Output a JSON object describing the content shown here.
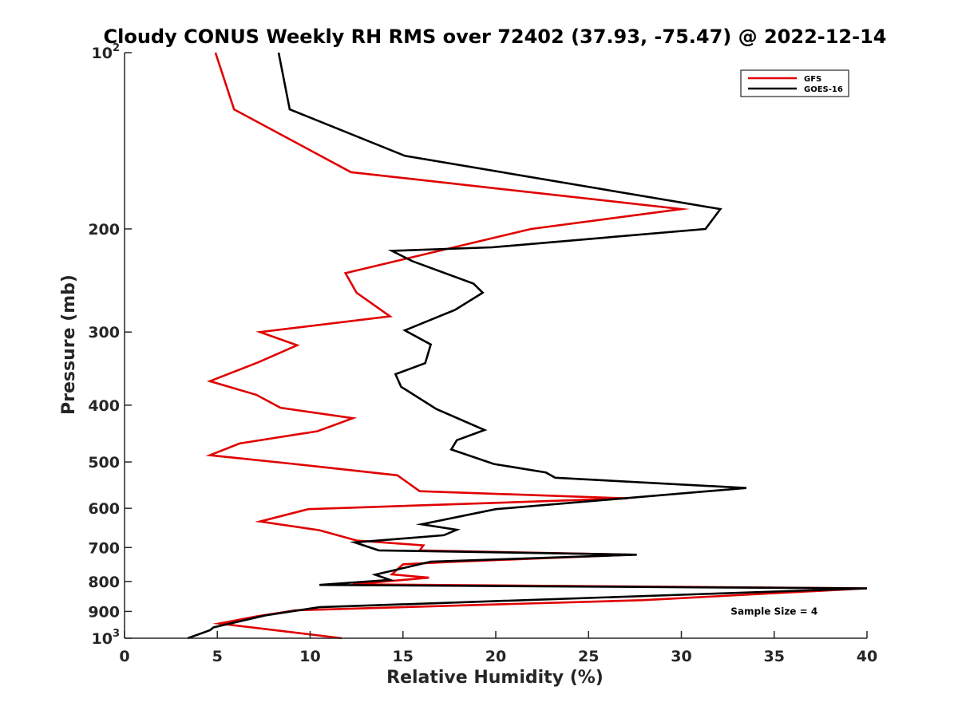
{
  "chart_data": {
    "type": "line",
    "title": "Cloudy CONUS Weekly RH RMS over 72402 (37.93, -75.47) @ 2022-12-14",
    "xlabel": "Relative Humidity (%)",
    "ylabel": "Pressure (mb)",
    "xlim": [
      0,
      40
    ],
    "ylim": [
      100,
      1000
    ],
    "y_scale": "log",
    "y_reversed": true,
    "grid": false,
    "legend_position": "top-right",
    "x_ticks": [
      0,
      5,
      10,
      15,
      20,
      25,
      30,
      35,
      40
    ],
    "x_tick_labels": [
      "0",
      "5",
      "10",
      "15",
      "20",
      "25",
      "30",
      "35",
      "40"
    ],
    "y_ticks": [
      100,
      200,
      300,
      400,
      500,
      600,
      700,
      800,
      900,
      1000
    ],
    "y_tick_labels": [
      {
        "base": "10",
        "sup": "2"
      },
      {
        "base": "200",
        "sup": ""
      },
      {
        "base": "300",
        "sup": ""
      },
      {
        "base": "400",
        "sup": ""
      },
      {
        "base": "500",
        "sup": ""
      },
      {
        "base": "600",
        "sup": ""
      },
      {
        "base": "700",
        "sup": ""
      },
      {
        "base": "800",
        "sup": ""
      },
      {
        "base": "900",
        "sup": ""
      },
      {
        "base": "10",
        "sup": "3"
      }
    ],
    "series": [
      {
        "name": "GFS",
        "color": "#e00000",
        "points": [
          [
            4.9,
            100
          ],
          [
            5.9,
            125
          ],
          [
            12.2,
            160
          ],
          [
            30.0,
            185
          ],
          [
            21.9,
            200
          ],
          [
            11.9,
            238
          ],
          [
            12.5,
            257
          ],
          [
            14.3,
            282
          ],
          [
            7.3,
            300
          ],
          [
            9.3,
            316
          ],
          [
            7.2,
            338
          ],
          [
            4.6,
            364
          ],
          [
            7.1,
            384
          ],
          [
            8.4,
            404
          ],
          [
            12.3,
            421
          ],
          [
            10.4,
            443
          ],
          [
            6.2,
            465
          ],
          [
            4.6,
            487
          ],
          [
            8.9,
            503
          ],
          [
            14.7,
            527
          ],
          [
            15.9,
            561
          ],
          [
            27.1,
            577
          ],
          [
            9.9,
            602
          ],
          [
            7.3,
            632
          ],
          [
            10.5,
            654
          ],
          [
            12.5,
            681
          ],
          [
            16.1,
            694
          ],
          [
            15.9,
            708
          ],
          [
            27.3,
            720
          ],
          [
            17.5,
            741
          ],
          [
            15.0,
            748
          ],
          [
            14.4,
            778
          ],
          [
            16.4,
            788
          ],
          [
            12.3,
            809
          ],
          [
            40.0,
            822
          ],
          [
            27.9,
            861
          ],
          [
            9.2,
            896
          ],
          [
            7.1,
            918
          ],
          [
            5.1,
            944
          ],
          [
            11.7,
            1000
          ]
        ]
      },
      {
        "name": "GOES-16",
        "color": "#000000",
        "points": [
          [
            8.3,
            100
          ],
          [
            8.9,
            125
          ],
          [
            15.1,
            150
          ],
          [
            32.1,
            185
          ],
          [
            31.3,
            200
          ],
          [
            19.8,
            215
          ],
          [
            14.4,
            218
          ],
          [
            15.5,
            227
          ],
          [
            18.8,
            248
          ],
          [
            19.3,
            257
          ],
          [
            17.8,
            275
          ],
          [
            15.1,
            298
          ],
          [
            16.5,
            315
          ],
          [
            16.2,
            339
          ],
          [
            14.6,
            354
          ],
          [
            14.9,
            372
          ],
          [
            16.8,
            406
          ],
          [
            19.4,
            441
          ],
          [
            17.9,
            459
          ],
          [
            17.6,
            476
          ],
          [
            19.9,
            504
          ],
          [
            22.7,
            521
          ],
          [
            23.2,
            532
          ],
          [
            33.5,
            554
          ],
          [
            20.0,
            602
          ],
          [
            16.0,
            639
          ],
          [
            17.9,
            653
          ],
          [
            17.2,
            667
          ],
          [
            12.4,
            686
          ],
          [
            13.7,
            708
          ],
          [
            27.6,
            720
          ],
          [
            16.5,
            740
          ],
          [
            13.5,
            779
          ],
          [
            14.3,
            795
          ],
          [
            10.5,
            811
          ],
          [
            40.0,
            822
          ],
          [
            10.5,
            885
          ],
          [
            7.6,
            914
          ],
          [
            4.8,
            958
          ],
          [
            4.6,
            969
          ],
          [
            3.4,
            1000
          ]
        ]
      }
    ],
    "annotations": [
      {
        "text": "Sample Size = 4",
        "x": 35,
        "y": 912
      }
    ]
  }
}
